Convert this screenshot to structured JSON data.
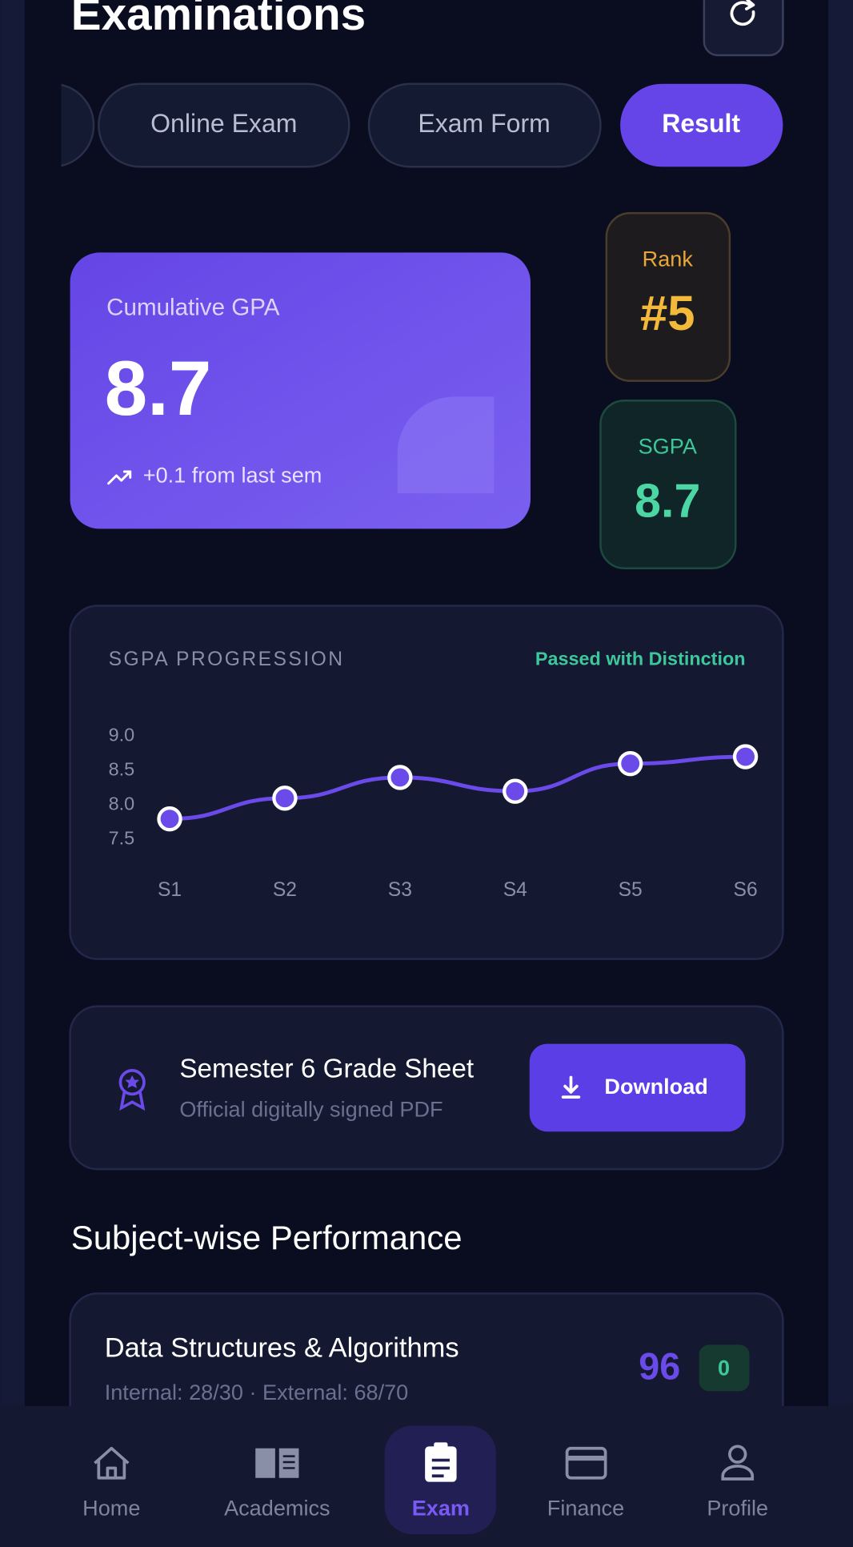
{
  "header": {
    "title": "Examinations"
  },
  "tabs": [
    "Online Exam",
    "Exam Form",
    "Result"
  ],
  "gpa_card": {
    "label": "Cumulative GPA",
    "value": "8.7",
    "trend": "+0.1 from last sem"
  },
  "rank_card": {
    "label": "Rank",
    "value": "#5"
  },
  "sgpa_card": {
    "label": "SGPA",
    "value": "8.7"
  },
  "chart_data": {
    "type": "line",
    "title": "SGPA PROGRESSION",
    "annotation": "Passed with Distinction",
    "categories": [
      "S1",
      "S2",
      "S3",
      "S4",
      "S5",
      "S6"
    ],
    "values": [
      7.8,
      8.1,
      8.4,
      8.2,
      8.6,
      8.7
    ],
    "color": "#6a4ae8",
    "ylim": [
      7.5,
      9.0
    ],
    "yticks": [
      {
        "value": 9,
        "label": "9.0"
      },
      8.5,
      {
        "value": 8,
        "label": "8.0"
      },
      7.5
    ],
    "grid": false
  },
  "grade_sheet": {
    "title": "Semester 6 Grade Sheet",
    "subtitle": "Official digitally signed PDF",
    "button": "Download"
  },
  "subjects_heading": "Subject-wise Performance",
  "subjects": [
    {
      "name": "Data Structures & Algorithms",
      "detail": "Internal: 28/30 · External: 68/70",
      "score": "96",
      "badge": "0"
    }
  ],
  "nav": [
    "Home",
    "Academics",
    "Exam",
    "Finance",
    "Profile"
  ]
}
